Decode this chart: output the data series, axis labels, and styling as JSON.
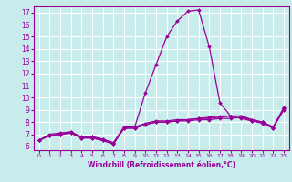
{
  "title": "",
  "xlabel": "Windchill (Refroidissement éolien,°C)",
  "ylabel": "",
  "bg_color": "#c8ecec",
  "line_color": "#990099",
  "grid_color": "#ffffff",
  "xlim": [
    -0.5,
    23.5
  ],
  "ylim": [
    5.7,
    17.5
  ],
  "xticks": [
    0,
    1,
    2,
    3,
    4,
    5,
    6,
    7,
    8,
    9,
    10,
    11,
    12,
    13,
    14,
    15,
    16,
    17,
    18,
    19,
    20,
    21,
    22,
    23
  ],
  "yticks": [
    6,
    7,
    8,
    9,
    10,
    11,
    12,
    13,
    14,
    15,
    16,
    17
  ],
  "series": [
    [
      6.5,
      6.9,
      7.0,
      7.1,
      6.7,
      6.7,
      6.5,
      6.2,
      7.6,
      7.6,
      10.4,
      12.7,
      15.0,
      16.3,
      17.1,
      17.2,
      14.2,
      9.6,
      8.5,
      8.3,
      8.1,
      8.0,
      7.5,
      9.2
    ],
    [
      6.5,
      6.9,
      7.0,
      7.1,
      6.7,
      6.7,
      6.5,
      6.2,
      7.5,
      7.5,
      7.8,
      8.0,
      8.0,
      8.1,
      8.1,
      8.2,
      8.2,
      8.3,
      8.3,
      8.4,
      8.1,
      7.9,
      7.5,
      9.0
    ],
    [
      6.5,
      6.9,
      7.0,
      7.2,
      6.7,
      6.8,
      6.6,
      6.3,
      7.5,
      7.5,
      7.8,
      8.0,
      8.0,
      8.1,
      8.2,
      8.3,
      8.3,
      8.4,
      8.5,
      8.5,
      8.2,
      8.0,
      7.6,
      9.1
    ],
    [
      6.5,
      7.0,
      7.1,
      7.2,
      6.8,
      6.8,
      6.6,
      6.3,
      7.6,
      7.6,
      7.9,
      8.1,
      8.1,
      8.2,
      8.2,
      8.3,
      8.4,
      8.5,
      8.5,
      8.5,
      8.2,
      8.0,
      7.6,
      9.1
    ]
  ],
  "tick_fontsize_x": 4.5,
  "tick_fontsize_y": 5.5,
  "xlabel_fontsize": 5.5,
  "linewidth": 0.9,
  "markersize": 2.0
}
